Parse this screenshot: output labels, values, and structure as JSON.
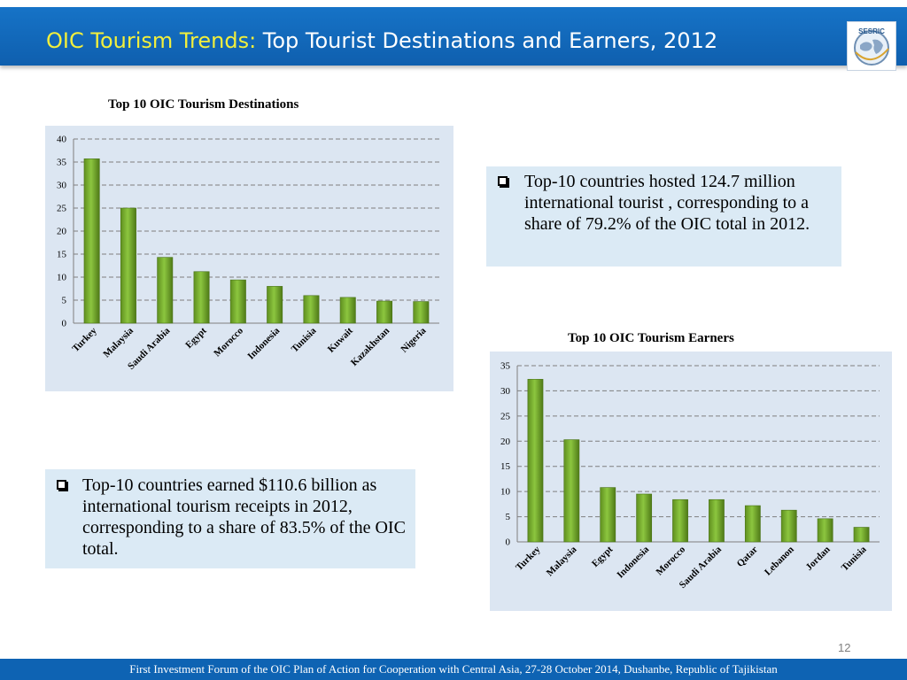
{
  "header": {
    "title_prefix": "OIC Tourism Trends:",
    "title_main": " Top Tourist Destinations and Earners, 2012",
    "logo_text": "SESRIC",
    "background_color": "#1270c2",
    "prefix_color": "#f2ef3c"
  },
  "bar_color": "#8cc63f",
  "notes": {
    "destinations": "Top-10 countries hosted 124.7 million international tourist , corresponding to a share of 79.2% of the OIC total in 2012.",
    "earners": "Top-10 countries earned  $110.6 billion as international tourism receipts in 2012, corresponding to a share of 83.5% of the OIC total."
  },
  "chart_data": [
    {
      "type": "bar",
      "title": "Top 10 OIC Tourism Destinations",
      "categories": [
        "Turkey",
        "Malaysia",
        "Saudi Arabia",
        "Egypt",
        "Morocco",
        "Indonesia",
        "Tunisia",
        "Kuwait",
        "Kazakhstan",
        "Nigeria"
      ],
      "values": [
        35.7,
        25.0,
        14.3,
        11.2,
        9.4,
        8.0,
        6.0,
        5.6,
        4.8,
        4.7
      ],
      "ylim": [
        0,
        40
      ],
      "yticks": [
        0,
        5,
        10,
        15,
        20,
        25,
        30,
        35,
        40
      ],
      "grid": true,
      "xlabel": "",
      "ylabel": ""
    },
    {
      "type": "bar",
      "title": "Top 10 OIC Tourism Earners",
      "categories": [
        "Turkey",
        "Malaysia",
        "Egypt",
        "Indonesia",
        "Morocco",
        "Saudi Arabia",
        "Qatar",
        "Lebanon",
        "Jordan",
        "Tunisia"
      ],
      "values": [
        32.3,
        20.3,
        10.8,
        9.5,
        8.4,
        8.4,
        7.2,
        6.3,
        4.6,
        2.9
      ],
      "ylim": [
        0,
        35
      ],
      "yticks": [
        0,
        5,
        10,
        15,
        20,
        25,
        30,
        35
      ],
      "grid": true,
      "xlabel": "",
      "ylabel": ""
    }
  ],
  "page_number": "12",
  "footer": {
    "text": "First Investment Forum of the OIC Plan of Action for Cooperation with Central Asia, 27-28 October 2014, Dushanbe, Republic of Tajikistan"
  }
}
